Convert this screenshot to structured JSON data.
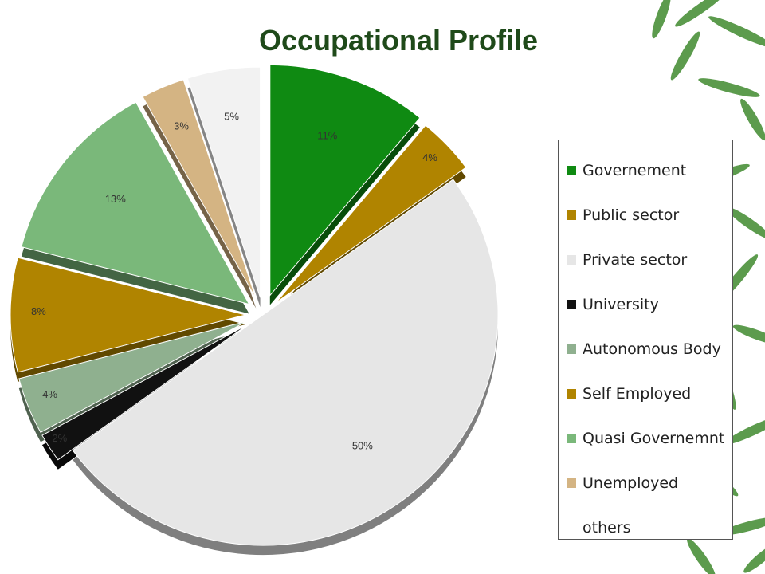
{
  "chart_data": {
    "type": "pie",
    "title": "Occupational Profile",
    "slices": [
      {
        "name": "Governement",
        "label": "11%",
        "value": 11,
        "color": "#0f8a12"
      },
      {
        "name": "Public sector",
        "label": "4%",
        "value": 4,
        "color": "#b08400"
      },
      {
        "name": "Private sector",
        "label": "50%",
        "value": 50,
        "color": "#e6e6e6"
      },
      {
        "name": "University",
        "label": "2%",
        "value": 2,
        "color": "#111111"
      },
      {
        "name": "Autonomous Body",
        "label": "4%",
        "value": 4,
        "color": "#8fb08f"
      },
      {
        "name": "Self Employed",
        "label": "8%",
        "value": 8,
        "color": "#b08400"
      },
      {
        "name": "Quasi Governemnt",
        "label": "13%",
        "value": 13,
        "color": "#7ab87a"
      },
      {
        "name": "Unemployed",
        "label": "3%",
        "value": 3,
        "color": "#d4b483"
      },
      {
        "name": "others",
        "label": "5%",
        "value": 5,
        "color": "#f2f2f2"
      }
    ],
    "legend_position": "right"
  }
}
